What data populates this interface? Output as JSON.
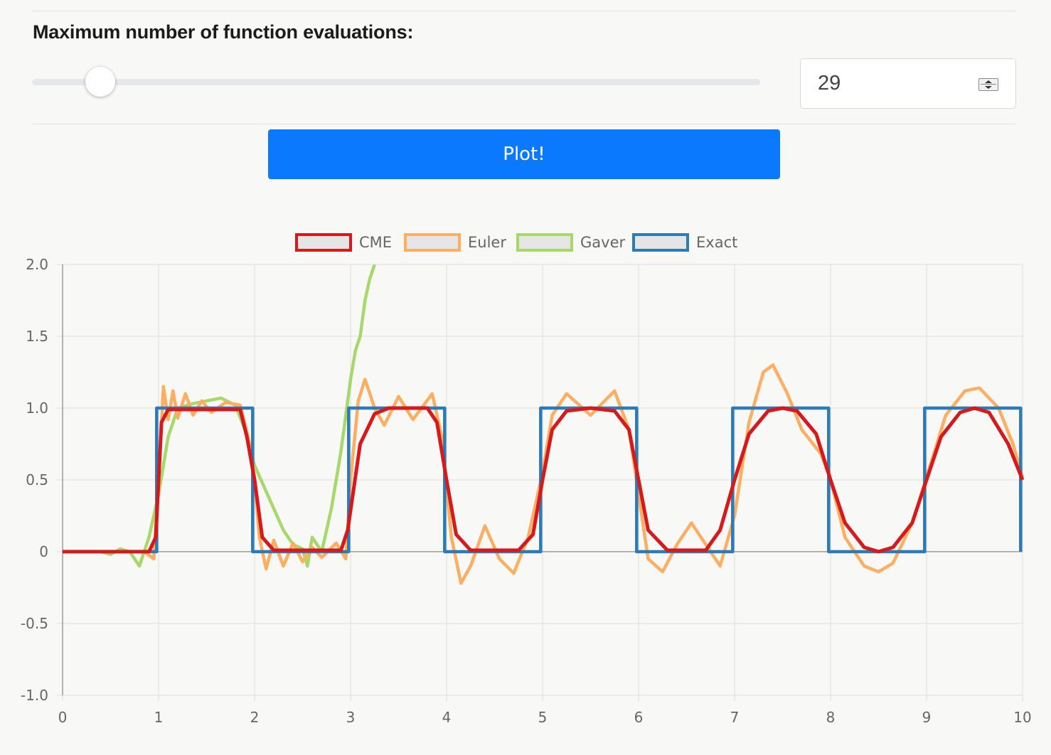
{
  "settings": {
    "max_evals_label": "Maximum number of function evaluations:",
    "max_evals_value": "29",
    "slider_fraction": 0.074,
    "plot_button": "Plot!"
  },
  "colors": {
    "accent": "#0a79fe",
    "cme": "#d7191c",
    "euler": "#fdae61",
    "gaver": "#a6d96a",
    "exact": "#2c7bb6"
  },
  "chart_data": {
    "type": "line",
    "x_ticks": [
      "0",
      "1",
      "2",
      "3",
      "4",
      "5",
      "6",
      "7",
      "8",
      "9",
      "10"
    ],
    "y_ticks": [
      "2.0",
      "1.5",
      "1.0",
      "0.5",
      "0",
      "-0.5",
      "-1.0"
    ],
    "xlim": [
      0,
      10
    ],
    "ylim": [
      -1.0,
      2.0
    ],
    "grid": true,
    "legend_position": "top",
    "series": [
      {
        "name": "CME",
        "color": "#d7191c",
        "points": [
          [
            0,
            0
          ],
          [
            0.9,
            0
          ],
          [
            0.97,
            0.1
          ],
          [
            1.03,
            0.9
          ],
          [
            1.1,
            0.99
          ],
          [
            1.85,
            0.99
          ],
          [
            1.92,
            0.8
          ],
          [
            2.0,
            0.5
          ],
          [
            2.08,
            0.1
          ],
          [
            2.2,
            0.01
          ],
          [
            2.9,
            0.01
          ],
          [
            2.97,
            0.15
          ],
          [
            3.1,
            0.75
          ],
          [
            3.25,
            0.96
          ],
          [
            3.4,
            1.0
          ],
          [
            3.8,
            1.0
          ],
          [
            3.9,
            0.9
          ],
          [
            4.0,
            0.5
          ],
          [
            4.1,
            0.12
          ],
          [
            4.25,
            0.01
          ],
          [
            4.75,
            0.01
          ],
          [
            4.9,
            0.12
          ],
          [
            5.0,
            0.5
          ],
          [
            5.1,
            0.85
          ],
          [
            5.25,
            0.98
          ],
          [
            5.5,
            1.0
          ],
          [
            5.75,
            0.98
          ],
          [
            5.9,
            0.85
          ],
          [
            6.0,
            0.5
          ],
          [
            6.1,
            0.15
          ],
          [
            6.3,
            0.01
          ],
          [
            6.7,
            0.01
          ],
          [
            6.85,
            0.15
          ],
          [
            7.0,
            0.5
          ],
          [
            7.15,
            0.82
          ],
          [
            7.35,
            0.98
          ],
          [
            7.5,
            1.0
          ],
          [
            7.65,
            0.98
          ],
          [
            7.85,
            0.82
          ],
          [
            8.0,
            0.5
          ],
          [
            8.15,
            0.2
          ],
          [
            8.35,
            0.03
          ],
          [
            8.5,
            0.0
          ],
          [
            8.65,
            0.03
          ],
          [
            8.85,
            0.2
          ],
          [
            9.0,
            0.5
          ],
          [
            9.15,
            0.8
          ],
          [
            9.35,
            0.97
          ],
          [
            9.5,
            1.0
          ],
          [
            9.65,
            0.97
          ],
          [
            9.85,
            0.75
          ],
          [
            10.0,
            0.5
          ]
        ]
      },
      {
        "name": "Euler",
        "color": "#fdae61",
        "points": [
          [
            0,
            0
          ],
          [
            0.85,
            0
          ],
          [
            0.95,
            -0.05
          ],
          [
            1.0,
            0.5
          ],
          [
            1.05,
            1.15
          ],
          [
            1.1,
            0.92
          ],
          [
            1.15,
            1.12
          ],
          [
            1.2,
            0.93
          ],
          [
            1.28,
            1.1
          ],
          [
            1.36,
            0.95
          ],
          [
            1.45,
            1.05
          ],
          [
            1.55,
            0.97
          ],
          [
            1.7,
            1.04
          ],
          [
            1.85,
            1.02
          ],
          [
            1.95,
            0.75
          ],
          [
            2.0,
            0.5
          ],
          [
            2.05,
            0.1
          ],
          [
            2.12,
            -0.12
          ],
          [
            2.2,
            0.08
          ],
          [
            2.3,
            -0.1
          ],
          [
            2.4,
            0.06
          ],
          [
            2.5,
            -0.07
          ],
          [
            2.6,
            0.03
          ],
          [
            2.7,
            -0.04
          ],
          [
            2.85,
            0.06
          ],
          [
            2.95,
            -0.05
          ],
          [
            3.0,
            0.5
          ],
          [
            3.08,
            1.05
          ],
          [
            3.15,
            1.2
          ],
          [
            3.25,
            1.0
          ],
          [
            3.35,
            0.88
          ],
          [
            3.5,
            1.08
          ],
          [
            3.65,
            0.92
          ],
          [
            3.85,
            1.1
          ],
          [
            3.95,
            0.8
          ],
          [
            4.05,
            0.1
          ],
          [
            4.15,
            -0.22
          ],
          [
            4.25,
            -0.1
          ],
          [
            4.4,
            0.18
          ],
          [
            4.55,
            -0.05
          ],
          [
            4.7,
            -0.15
          ],
          [
            4.85,
            0.1
          ],
          [
            5.0,
            0.55
          ],
          [
            5.1,
            0.95
          ],
          [
            5.25,
            1.1
          ],
          [
            5.5,
            0.95
          ],
          [
            5.75,
            1.12
          ],
          [
            5.9,
            0.85
          ],
          [
            6.0,
            0.4
          ],
          [
            6.1,
            -0.05
          ],
          [
            6.25,
            -0.14
          ],
          [
            6.4,
            0.05
          ],
          [
            6.55,
            0.2
          ],
          [
            6.7,
            0.05
          ],
          [
            6.85,
            -0.1
          ],
          [
            7.0,
            0.25
          ],
          [
            7.15,
            0.9
          ],
          [
            7.3,
            1.25
          ],
          [
            7.4,
            1.3
          ],
          [
            7.55,
            1.1
          ],
          [
            7.7,
            0.85
          ],
          [
            7.9,
            0.68
          ],
          [
            8.0,
            0.5
          ],
          [
            8.15,
            0.1
          ],
          [
            8.35,
            -0.1
          ],
          [
            8.5,
            -0.14
          ],
          [
            8.65,
            -0.08
          ],
          [
            8.85,
            0.2
          ],
          [
            9.0,
            0.52
          ],
          [
            9.2,
            0.95
          ],
          [
            9.4,
            1.12
          ],
          [
            9.55,
            1.14
          ],
          [
            9.75,
            1.0
          ],
          [
            9.9,
            0.75
          ],
          [
            10.0,
            0.52
          ]
        ]
      },
      {
        "name": "Gaver",
        "color": "#a6d96a",
        "points": [
          [
            0,
            0
          ],
          [
            0.4,
            0
          ],
          [
            0.5,
            -0.02
          ],
          [
            0.6,
            0.02
          ],
          [
            0.7,
            0.0
          ],
          [
            0.8,
            -0.1
          ],
          [
            0.9,
            0.1
          ],
          [
            1.0,
            0.4
          ],
          [
            1.1,
            0.8
          ],
          [
            1.2,
            1.0
          ],
          [
            1.35,
            1.03
          ],
          [
            1.5,
            1.05
          ],
          [
            1.65,
            1.07
          ],
          [
            1.8,
            1.02
          ],
          [
            1.9,
            0.85
          ],
          [
            2.0,
            0.6
          ],
          [
            2.1,
            0.45
          ],
          [
            2.2,
            0.3
          ],
          [
            2.3,
            0.15
          ],
          [
            2.4,
            0.05
          ],
          [
            2.5,
            0.02
          ],
          [
            2.55,
            -0.1
          ],
          [
            2.6,
            0.1
          ],
          [
            2.7,
            0.0
          ],
          [
            2.8,
            0.3
          ],
          [
            2.85,
            0.5
          ],
          [
            2.9,
            0.7
          ],
          [
            2.95,
            0.95
          ],
          [
            3.0,
            1.2
          ],
          [
            3.05,
            1.4
          ],
          [
            3.1,
            1.5
          ],
          [
            3.15,
            1.75
          ],
          [
            3.2,
            1.9
          ],
          [
            3.25,
            2.0
          ]
        ]
      },
      {
        "name": "Exact",
        "color": "#2c7bb6",
        "points": [
          [
            0,
            0
          ],
          [
            0.98,
            0
          ],
          [
            0.98,
            1
          ],
          [
            1.98,
            1
          ],
          [
            1.98,
            0
          ],
          [
            2.98,
            0
          ],
          [
            2.98,
            1
          ],
          [
            3.98,
            1
          ],
          [
            3.98,
            0
          ],
          [
            4.98,
            0
          ],
          [
            4.98,
            1
          ],
          [
            5.98,
            1
          ],
          [
            5.98,
            0
          ],
          [
            6.98,
            0
          ],
          [
            6.98,
            1
          ],
          [
            7.98,
            1
          ],
          [
            7.98,
            0
          ],
          [
            8.98,
            0
          ],
          [
            8.98,
            1
          ],
          [
            9.98,
            1
          ],
          [
            9.98,
            0
          ]
        ]
      }
    ]
  }
}
